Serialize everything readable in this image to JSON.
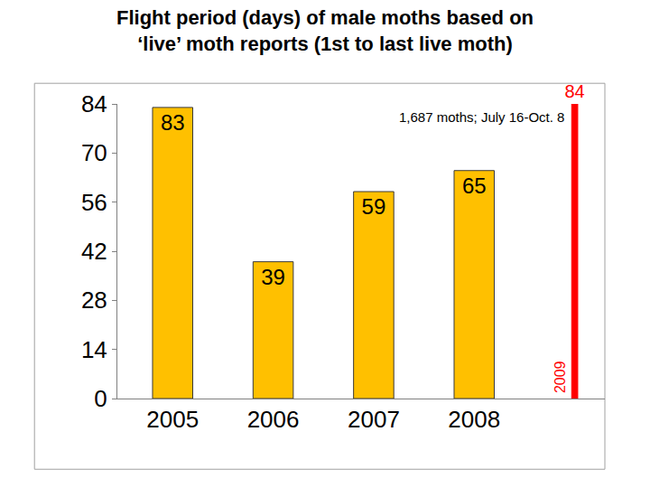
{
  "chart_data": {
    "type": "bar",
    "title": "Flight period (days) of male moths based on ‘live’ moth reports (1st to last live moth)",
    "categories": [
      "2005",
      "2006",
      "2007",
      "2008",
      null
    ],
    "values": [
      83,
      39,
      59,
      65,
      84
    ],
    "colors": [
      "#ffc000",
      "#ffc000",
      "#ffc000",
      "#ffc000",
      "#ff0000"
    ],
    "ylim": [
      0,
      84
    ],
    "yticks": [
      0,
      14,
      28,
      42,
      56,
      70,
      84
    ],
    "grid": false,
    "data_labels": true,
    "annotations": [
      "1,687 moths; July 16-Oct. 8",
      "2009"
    ]
  }
}
